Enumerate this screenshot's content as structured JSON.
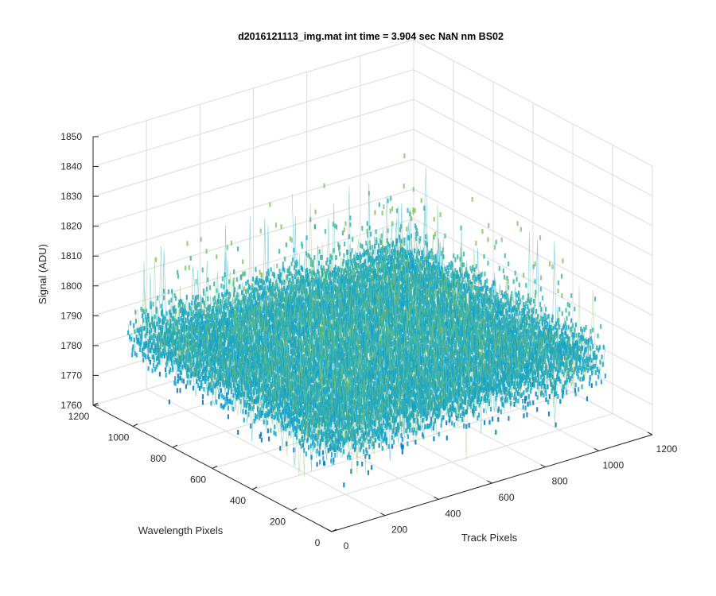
{
  "chart_data": {
    "type": "surface",
    "title": "d2016121113_img.mat int time = 3.904 sec  NaN nm BS02",
    "xlabel": "Track Pixels",
    "ylabel": "Wavelength Pixels",
    "zlabel": "Signal (ADU)",
    "xlim": [
      0,
      1200
    ],
    "ylim": [
      0,
      1200
    ],
    "zlim": [
      1760,
      1850
    ],
    "x_ticks": [
      0,
      200,
      400,
      600,
      800,
      1000,
      1200
    ],
    "y_ticks": [
      0,
      200,
      400,
      600,
      800,
      1000,
      1200
    ],
    "z_ticks": [
      1760,
      1770,
      1780,
      1790,
      1800,
      1810,
      1820,
      1830,
      1840,
      1850
    ],
    "data_extent": {
      "x": [
        0,
        1024
      ],
      "y": [
        0,
        1024
      ]
    },
    "signal_mean": 1790,
    "signal_range_approx": [
      1765,
      1845
    ],
    "colormap": [
      "#0072bd",
      "#16a3c8",
      "#3fb6a8",
      "#8cc66a",
      "#d6c73a"
    ],
    "grid": true
  }
}
